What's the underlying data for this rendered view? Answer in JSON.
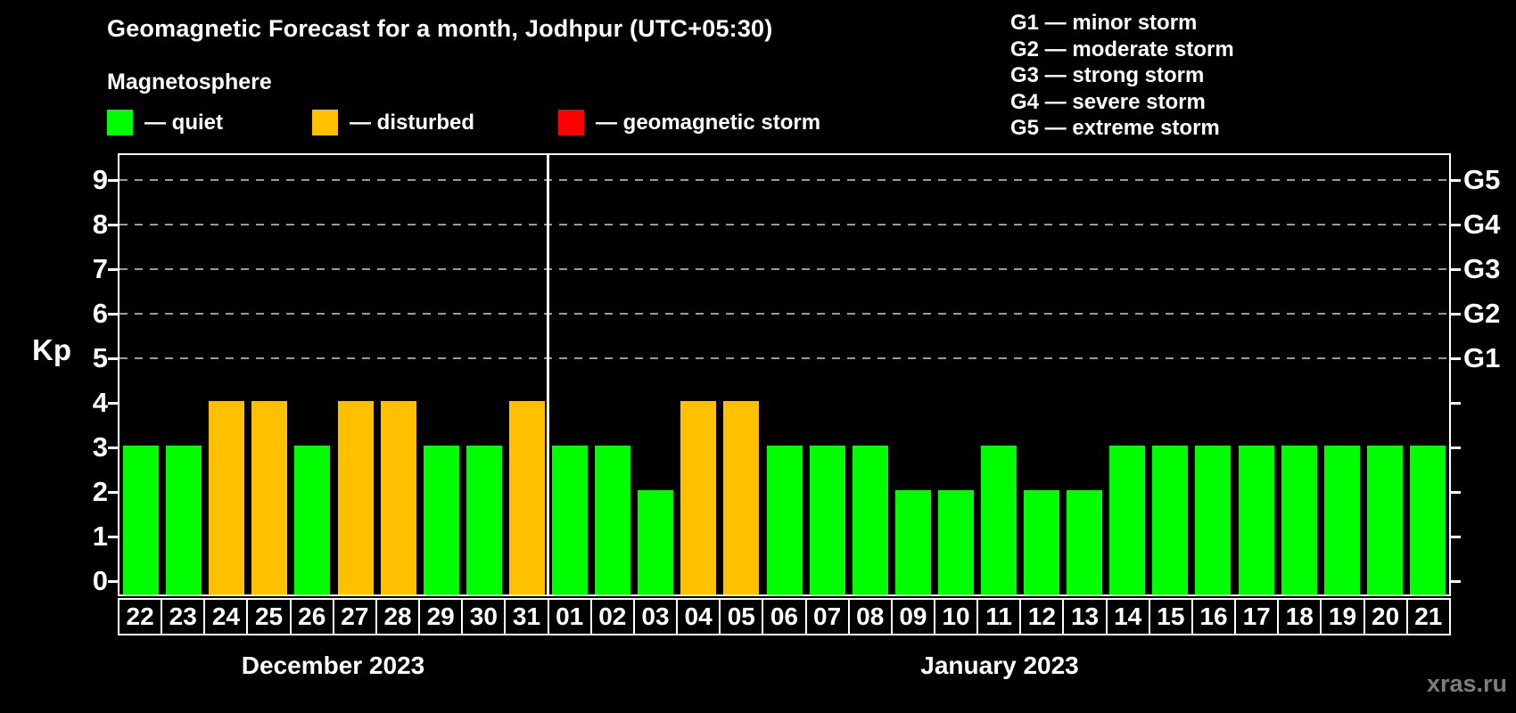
{
  "header": {
    "title": "Geomagnetic Forecast for a month, Jodhpur (UTC+05:30)",
    "subtitle": "Magnetosphere"
  },
  "legend": {
    "items": [
      {
        "name": "quiet",
        "label": "— quiet",
        "color": "#00ff00"
      },
      {
        "name": "disturbed",
        "label": "— disturbed",
        "color": "#ffc000"
      },
      {
        "name": "storm",
        "label": "— geomagnetic storm",
        "color": "#ff0000"
      }
    ]
  },
  "g_legend": [
    "G1 — minor storm",
    "G2 — moderate storm",
    "G3 — strong storm",
    "G4 — severe storm",
    "G5 — extreme storm"
  ],
  "watermark": "xras.ru",
  "chart_data": {
    "type": "bar",
    "title": "Geomagnetic Forecast for a month, Jodhpur (UTC+05:30)",
    "subtitle": "Magnetosphere",
    "xlabel": "",
    "ylabel": "Kp",
    "ylim": [
      0,
      9
    ],
    "y_ticks": [
      0,
      1,
      2,
      3,
      4,
      5,
      6,
      7,
      8,
      9
    ],
    "grid_kp": [
      5,
      6,
      7,
      8,
      9
    ],
    "grid_style": "dashed gray horizontal lines at Kp 5..9",
    "right_axis_labels": [
      {
        "label": "G1",
        "kp": 5
      },
      {
        "label": "G2",
        "kp": 6
      },
      {
        "label": "G3",
        "kp": 7
      },
      {
        "label": "G4",
        "kp": 8
      },
      {
        "label": "G5",
        "kp": 9
      }
    ],
    "colors": {
      "quiet": "#00ff00",
      "disturbed": "#ffc000",
      "storm": "#ff0000"
    },
    "color_rule": "Kp <= 3 quiet (green), Kp = 4 disturbed (orange), Kp >= 5 storm (red)",
    "series": [
      {
        "name": "December 2023",
        "categories": [
          "22",
          "23",
          "24",
          "25",
          "26",
          "27",
          "28",
          "29",
          "30",
          "31"
        ],
        "values": [
          3,
          3,
          4,
          4,
          3,
          4,
          4,
          3,
          3,
          4
        ]
      },
      {
        "name": "January 2023",
        "categories": [
          "01",
          "02",
          "03",
          "04",
          "05",
          "06",
          "07",
          "08",
          "09",
          "10",
          "11",
          "12",
          "13",
          "14",
          "15",
          "16",
          "17",
          "18",
          "19",
          "20",
          "21"
        ],
        "values": [
          3,
          3,
          2,
          4,
          4,
          3,
          3,
          3,
          2,
          2,
          3,
          2,
          2,
          3,
          3,
          3,
          3,
          3,
          3,
          3,
          3
        ]
      }
    ]
  }
}
